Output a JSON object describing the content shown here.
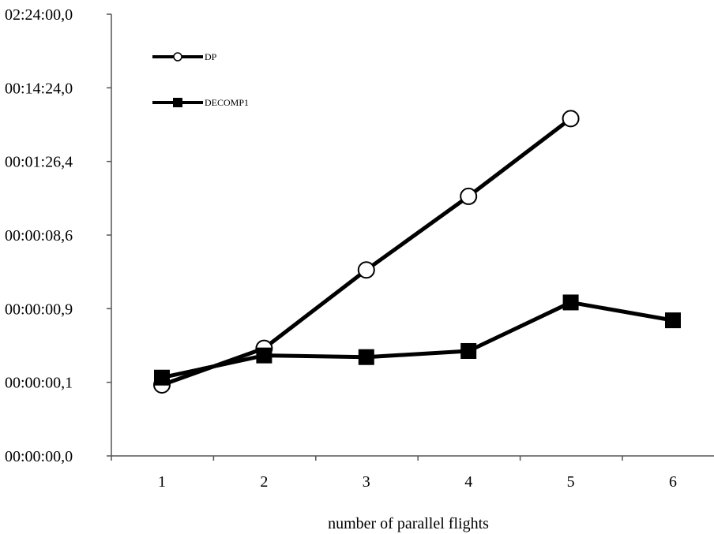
{
  "chart_data": {
    "type": "line",
    "title": "",
    "xlabel": "number of parallel flights",
    "ylabel": "",
    "y_scale": "log",
    "x_ticks": [
      "1",
      "2",
      "3",
      "4",
      "5",
      "6"
    ],
    "y_ticks": [
      "00:00:00,0",
      "00:00:00,1",
      "00:00:00,9",
      "00:00:08,6",
      "00:01:26,4",
      "00:14:24,0",
      "02:24:00,0"
    ],
    "y_tick_seconds": [
      0.01,
      0.0864,
      0.864,
      8.64,
      86.4,
      864,
      8640
    ],
    "legend_position": "top-left",
    "series": [
      {
        "name": "DP",
        "marker": "circle",
        "x": [
          1,
          2,
          3,
          4,
          5
        ],
        "y_seconds": [
          0.08,
          0.25,
          2.9,
          29,
          330
        ]
      },
      {
        "name": "DECOMP1",
        "marker": "square",
        "x": [
          1,
          2,
          3,
          4,
          5,
          6
        ],
        "y_seconds": [
          0.1,
          0.2,
          0.19,
          0.23,
          1.05,
          0.6
        ]
      }
    ]
  }
}
